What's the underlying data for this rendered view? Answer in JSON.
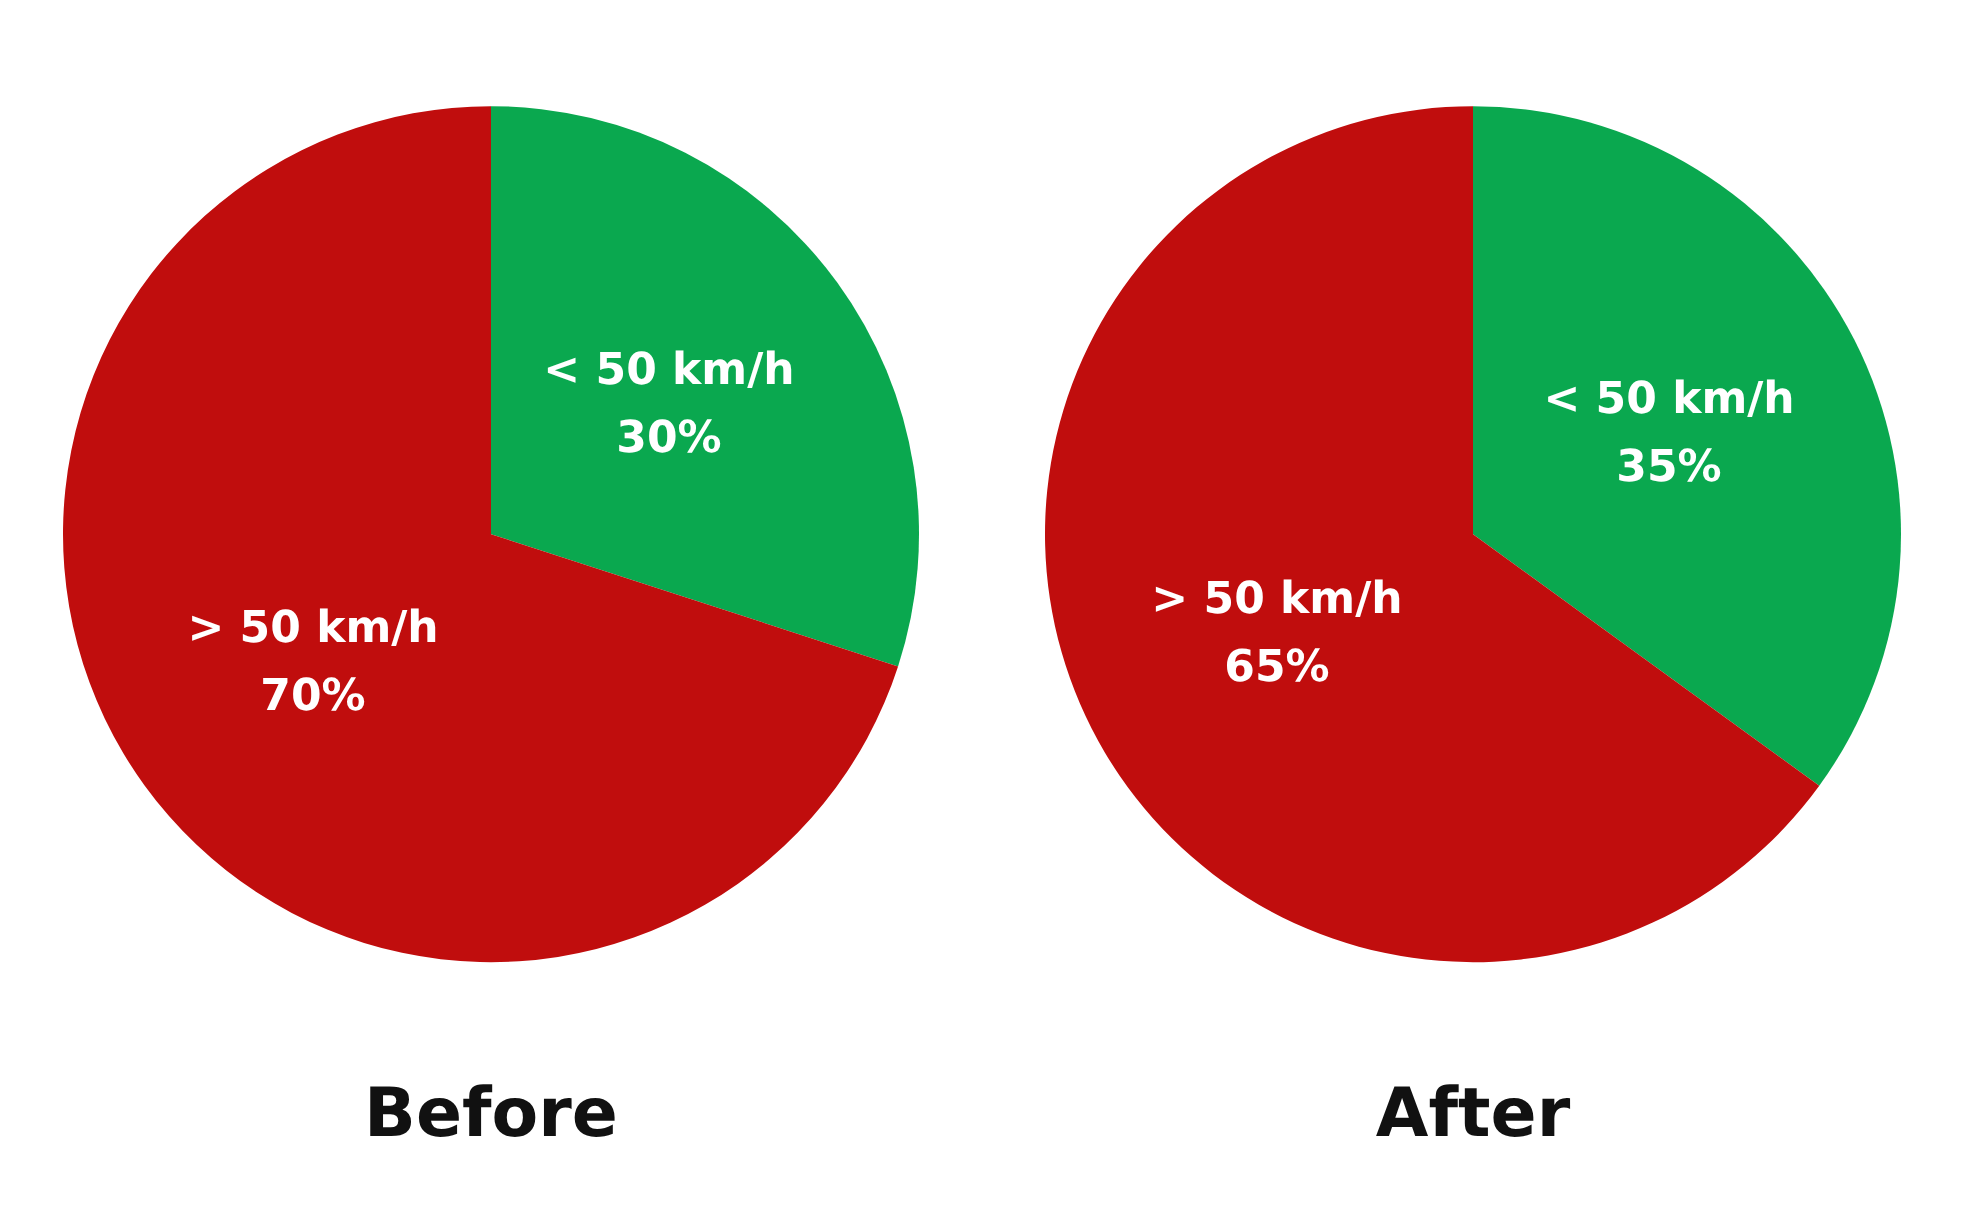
{
  "chart_data": [
    {
      "type": "pie",
      "title": "Before",
      "categories": [
        "< 50 km/h",
        "> 50 km/h"
      ],
      "values": [
        30,
        70
      ],
      "value_labels": [
        "30%",
        "70%"
      ],
      "colors": [
        "#0aa84f",
        "#c00d0d"
      ]
    },
    {
      "type": "pie",
      "title": "After",
      "categories": [
        "< 50 km/h",
        "> 50 km/h"
      ],
      "values": [
        35,
        65
      ],
      "value_labels": [
        "35%",
        "65%"
      ],
      "colors": [
        "#0aa84f",
        "#c00d0d"
      ]
    }
  ]
}
